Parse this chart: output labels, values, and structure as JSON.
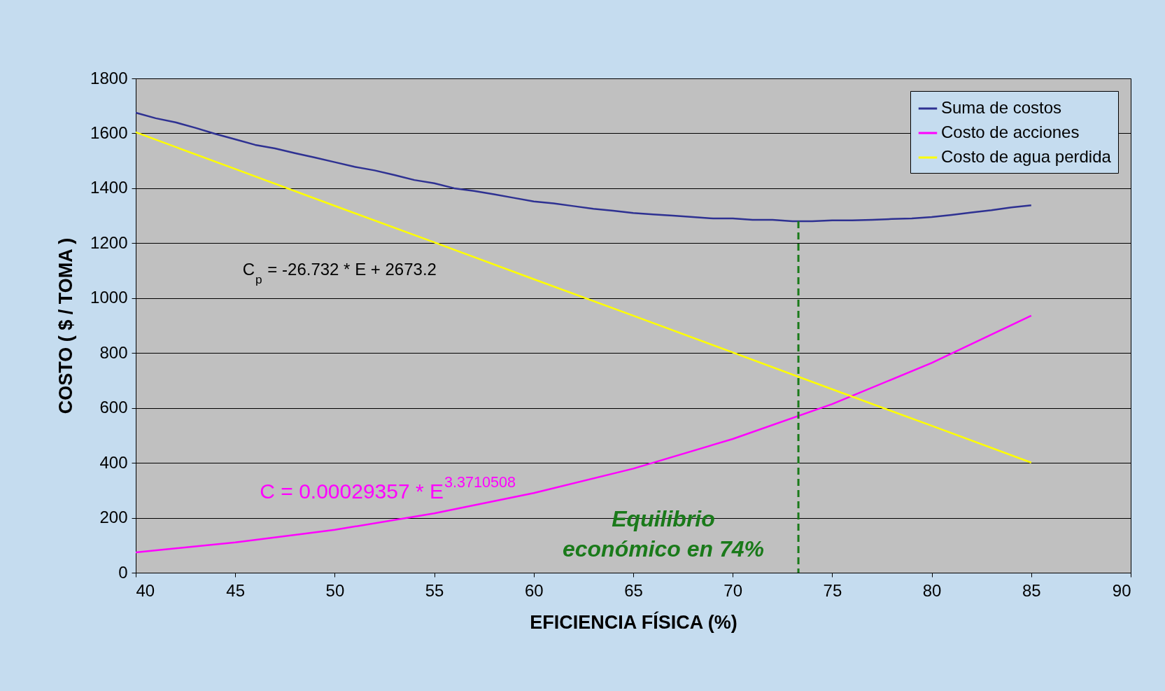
{
  "chart_data": {
    "type": "line",
    "xlabel": "EFICIENCIA FÍSICA (%)",
    "ylabel": "COSTO ( $ / TOMA )",
    "xlim": [
      40,
      90
    ],
    "xticks": [
      40,
      45,
      50,
      55,
      60,
      65,
      70,
      75,
      80,
      85,
      90
    ],
    "ylim": [
      0,
      1800
    ],
    "yticks": [
      0,
      200,
      400,
      600,
      800,
      1000,
      1200,
      1400,
      1600,
      1800
    ],
    "grid": "y",
    "legend": "top right",
    "line_style": "solid",
    "x": [
      40,
      41,
      42,
      43,
      44,
      45,
      46,
      47,
      48,
      49,
      50,
      51,
      52,
      53,
      54,
      55,
      56,
      57,
      58,
      59,
      60,
      61,
      62,
      63,
      64,
      65,
      66,
      67,
      68,
      69,
      70,
      71,
      72,
      73,
      74,
      75,
      76,
      77,
      78,
      79,
      80,
      81,
      82,
      83,
      84,
      85
    ],
    "series": [
      {
        "name": "Suma de costos",
        "color": "#2e3192",
        "values": [
          1675,
          1655,
          1640,
          1620,
          1598,
          1578,
          1558,
          1545,
          1528,
          1512,
          1495,
          1478,
          1465,
          1448,
          1430,
          1418,
          1400,
          1390,
          1378,
          1365,
          1352,
          1345,
          1335,
          1325,
          1318,
          1310,
          1305,
          1300,
          1295,
          1290,
          1290,
          1285,
          1285,
          1280,
          1280,
          1283,
          1283,
          1285,
          1288,
          1290,
          1295,
          1303,
          1312,
          1320,
          1330,
          1338
        ]
      },
      {
        "name": "Costo de acciones",
        "color": "#ff00ff",
        "x": [
          40,
          45,
          50,
          55,
          60,
          65,
          70,
          75,
          80,
          85
        ],
        "values": [
          74,
          110,
          156,
          216,
          290,
          379,
          487,
          614,
          764,
          936
        ]
      },
      {
        "name": "Costo de agua perdida",
        "color": "#ffff00",
        "x": [
          40,
          45,
          50,
          55,
          60,
          65,
          70,
          75,
          80,
          85
        ],
        "values": [
          1604,
          1470,
          1336,
          1203,
          1069,
          936,
          802,
          668,
          535,
          401
        ]
      },
      {
        "type": "line",
        "color": "#1a7a1a",
        "line_style": "dashed",
        "x": [
          73.3,
          73.3
        ],
        "values": [
          1280,
          0
        ]
      }
    ],
    "annotations": [
      "C$_{p}$ = -26.732  * E + 2673.2",
      "C = 0.00029357 * E$^{3.3710508}$",
      "Equilibrio\neconómico en 74%"
    ]
  }
}
